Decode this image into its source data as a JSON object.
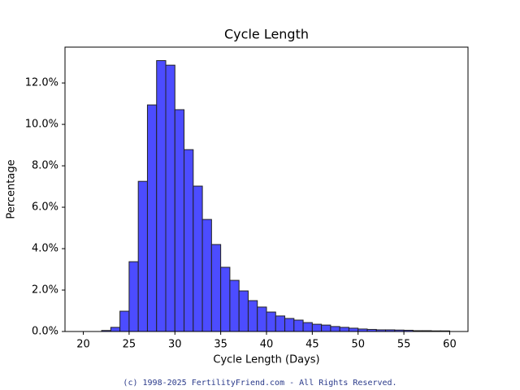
{
  "chart_data": {
    "type": "histogram",
    "title": "Cycle Length",
    "x_label": "Cycle Length (Days)",
    "y_label": "Percentage",
    "bins": [
      20,
      21,
      22,
      23,
      24,
      25,
      26,
      27,
      28,
      29,
      30,
      31,
      32,
      33,
      34,
      35,
      36,
      37,
      38,
      39,
      40,
      41,
      42,
      43,
      44,
      45,
      46,
      47,
      48,
      49,
      50,
      51,
      52,
      53,
      54,
      55,
      56,
      57,
      58,
      59,
      60
    ],
    "values": [
      0,
      0,
      0.05,
      0.2,
      0.98,
      3.37,
      7.25,
      10.94,
      13.08,
      12.86,
      10.71,
      8.78,
      7.02,
      5.41,
      4.2,
      3.1,
      2.47,
      1.96,
      1.49,
      1.18,
      0.94,
      0.75,
      0.63,
      0.55,
      0.43,
      0.35,
      0.31,
      0.24,
      0.2,
      0.16,
      0.12,
      0.1,
      0.08,
      0.08,
      0.07,
      0.06,
      0.04,
      0.04,
      0.03,
      0.03
    ],
    "color": "#4c4cff",
    "edge_color": "#222222",
    "xlim": [
      18,
      62
    ],
    "xticks": [
      20,
      25,
      30,
      35,
      40,
      45,
      50,
      55,
      60
    ],
    "ylim": [
      0,
      13.73
    ],
    "yticks": [
      {
        "value": 0,
        "label": "0.0%"
      },
      {
        "value": 2,
        "label": "2.0%"
      },
      {
        "value": 4,
        "label": "4.0%"
      },
      {
        "value": 6,
        "label": "6.0%"
      },
      {
        "value": 8,
        "label": "8.0%"
      },
      {
        "value": 10,
        "label": "10.0%"
      },
      {
        "value": 12,
        "label": "12.0%"
      }
    ],
    "footer": "(c) 1998-2025 FertilityFriend.com - All Rights Reserved."
  }
}
